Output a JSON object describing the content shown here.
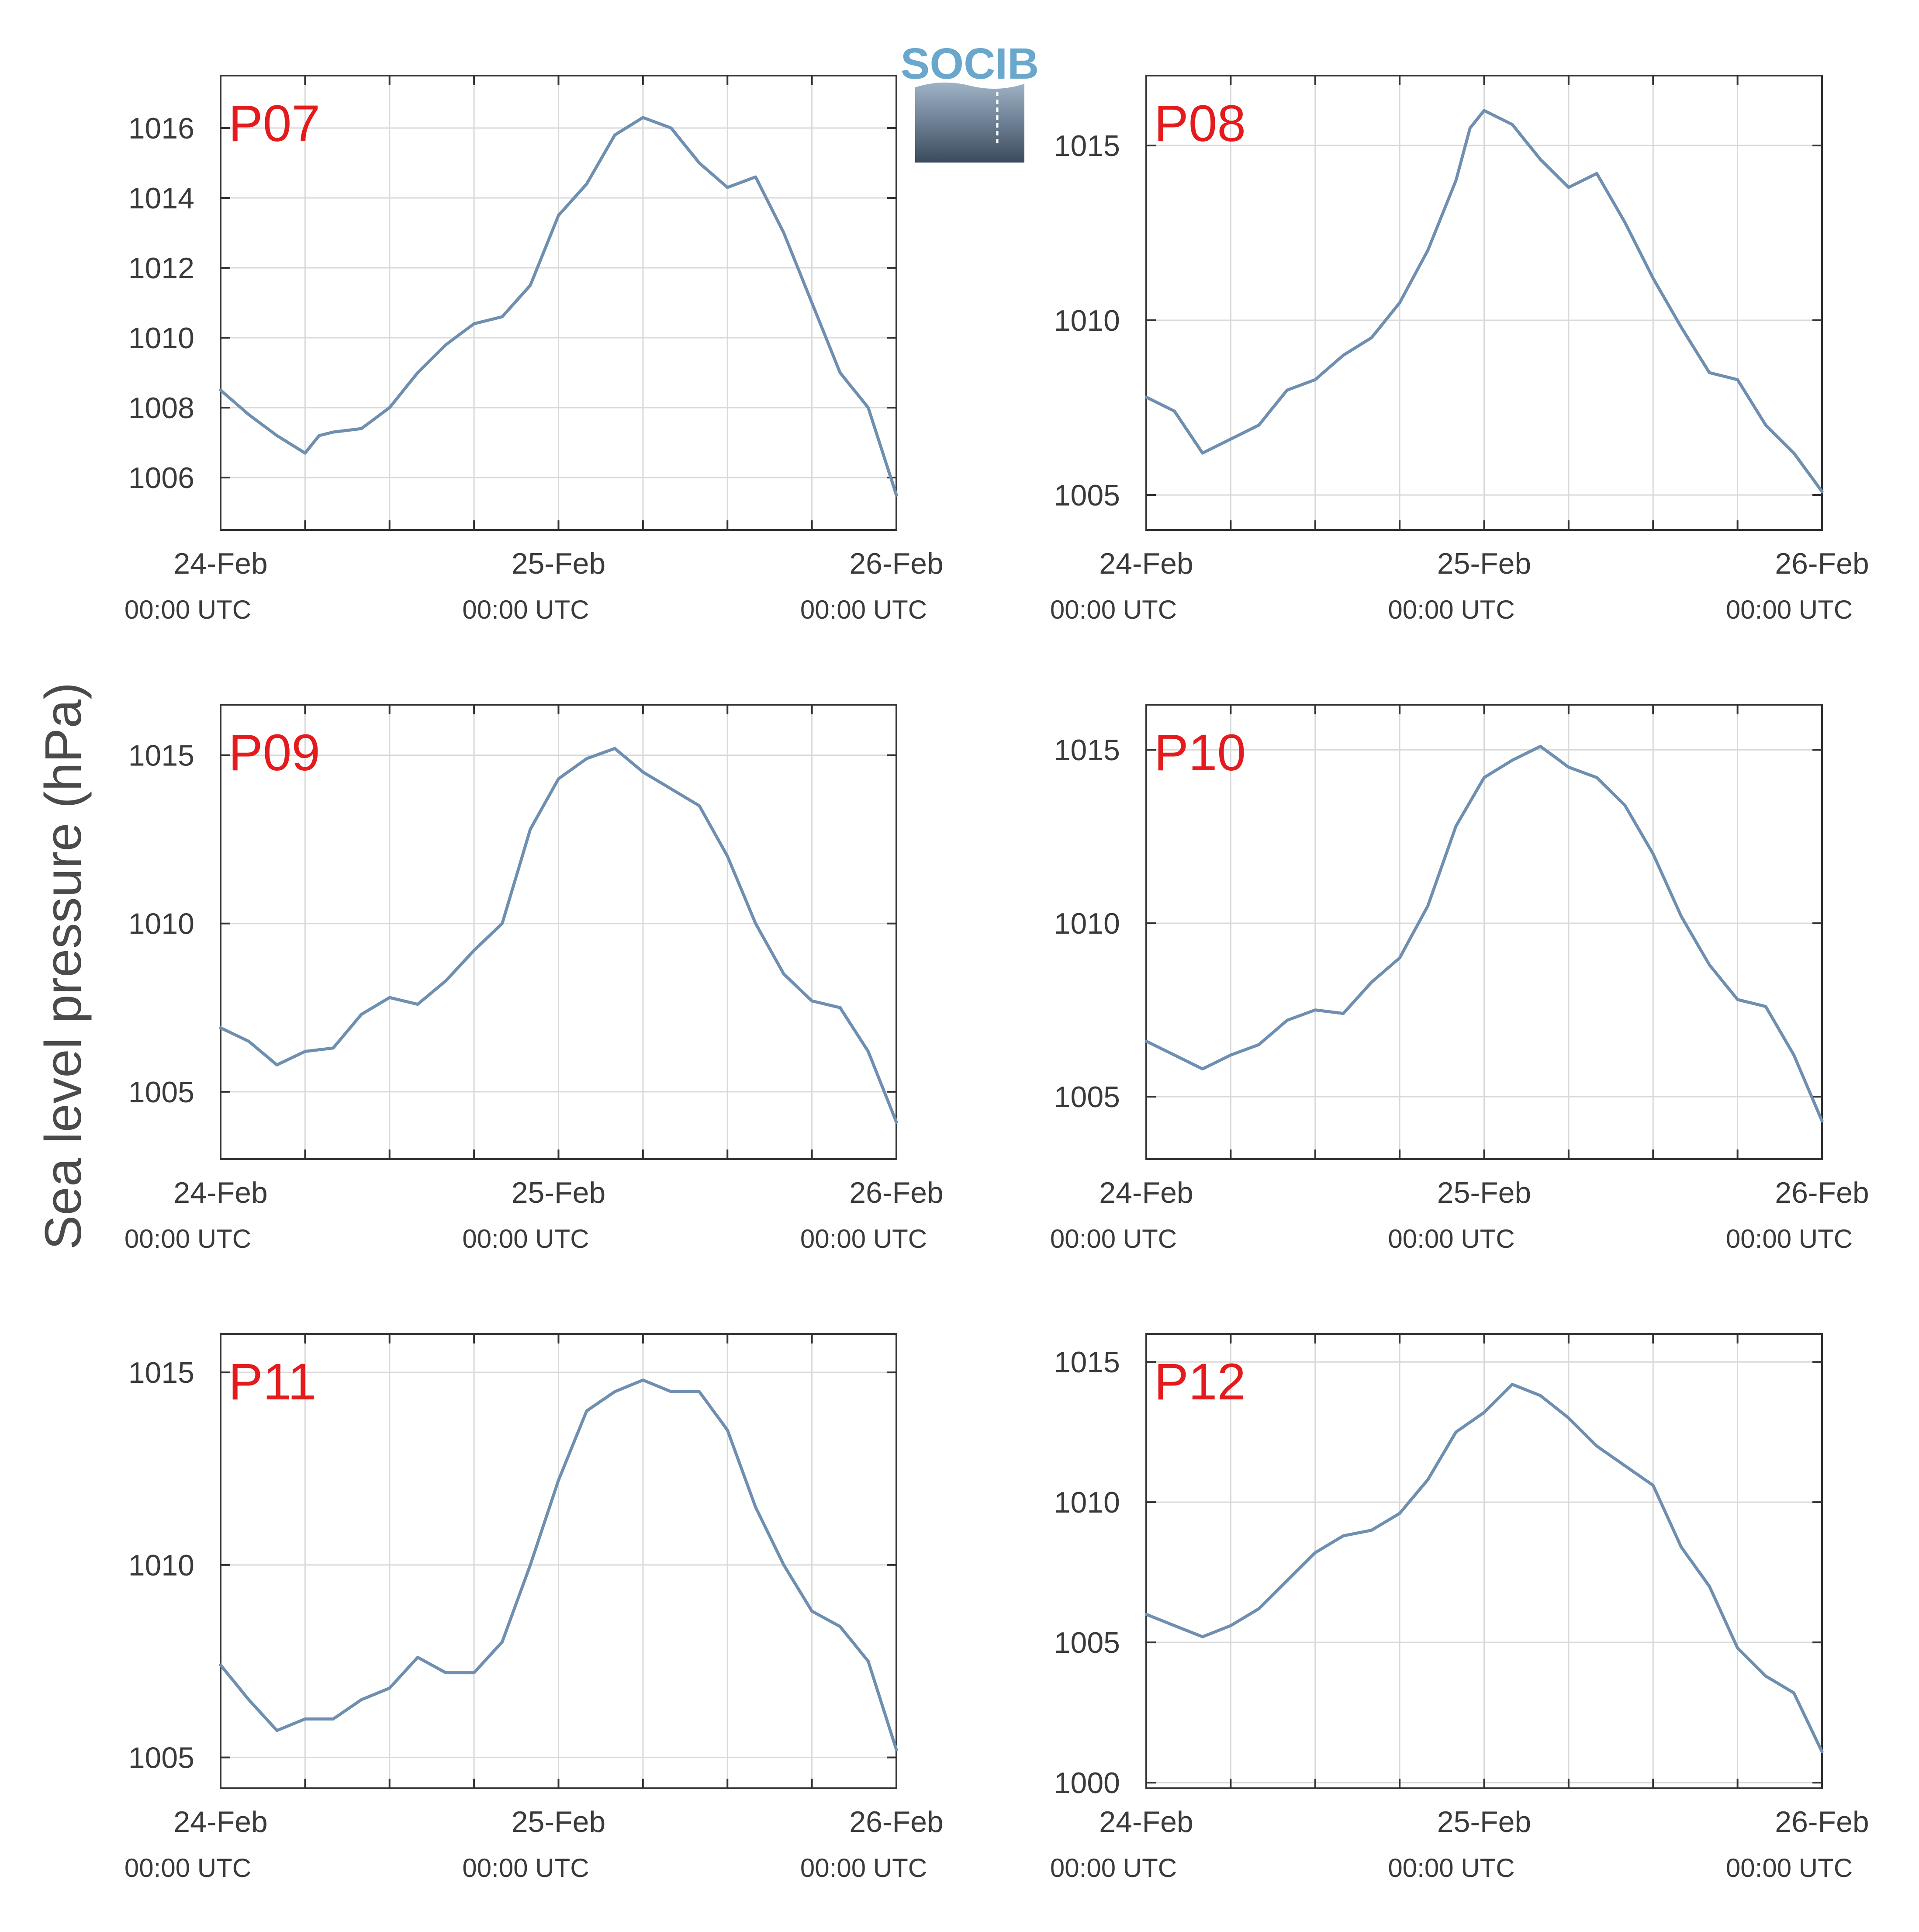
{
  "figure": {
    "ylabel": "Sea level pressure (hPa)",
    "logo_text": "SOCIB",
    "colors": {
      "line": "#6f8fb0",
      "panel_label": "#e41a1c",
      "logo_top": "#6aa7cc",
      "logo_bottom": "#3b4b5e"
    }
  },
  "chart_data": [
    {
      "type": "line",
      "panel": "P07",
      "x_ticks": [
        {
          "main": "24-Feb",
          "sub": "00:00 UTC"
        },
        {
          "main": "25-Feb",
          "sub": "00:00 UTC"
        },
        {
          "main": "26-Feb",
          "sub": "00:00 UTC"
        }
      ],
      "ylim": [
        1004.5,
        1017.5
      ],
      "yticks": [
        1006,
        1008,
        1010,
        1012,
        1014,
        1016
      ],
      "x": [
        0,
        2,
        4,
        6,
        7,
        8,
        10,
        12,
        14,
        16,
        18,
        20,
        22,
        24,
        26,
        28,
        30,
        32,
        34,
        36,
        38,
        40,
        42,
        44,
        46,
        48
      ],
      "values": [
        1008.5,
        1007.8,
        1007.2,
        1006.7,
        1007.2,
        1007.3,
        1007.4,
        1008.0,
        1009.0,
        1009.8,
        1010.4,
        1010.6,
        1011.5,
        1013.5,
        1014.4,
        1015.8,
        1016.3,
        1016.0,
        1015.0,
        1014.3,
        1014.6,
        1013.0,
        1011.0,
        1009.0,
        1008.0,
        1005.5
      ],
      "grid": true
    },
    {
      "type": "line",
      "panel": "P08",
      "x_ticks": [
        {
          "main": "24-Feb",
          "sub": "00:00 UTC"
        },
        {
          "main": "25-Feb",
          "sub": "00:00 UTC"
        },
        {
          "main": "26-Feb",
          "sub": "00:00 UTC"
        }
      ],
      "ylim": [
        1004,
        1017
      ],
      "yticks": [
        1005,
        1010,
        1015
      ],
      "x": [
        0,
        2,
        4,
        6,
        8,
        10,
        12,
        14,
        16,
        18,
        20,
        22,
        23,
        24,
        26,
        28,
        30,
        32,
        34,
        36,
        38,
        40,
        42,
        44,
        46,
        48
      ],
      "values": [
        1007.8,
        1007.4,
        1006.2,
        1006.6,
        1007.0,
        1008.0,
        1008.3,
        1009.0,
        1009.5,
        1010.5,
        1012.0,
        1014.0,
        1015.5,
        1016.0,
        1015.6,
        1014.6,
        1013.8,
        1014.2,
        1012.8,
        1011.2,
        1009.8,
        1008.5,
        1008.3,
        1007.0,
        1006.2,
        1005.1
      ],
      "grid": true
    },
    {
      "type": "line",
      "panel": "P09",
      "x_ticks": [
        {
          "main": "24-Feb",
          "sub": "00:00 UTC"
        },
        {
          "main": "25-Feb",
          "sub": "00:00 UTC"
        },
        {
          "main": "26-Feb",
          "sub": "00:00 UTC"
        }
      ],
      "ylim": [
        1003,
        1016.5
      ],
      "yticks": [
        1005,
        1010,
        1015
      ],
      "x": [
        0,
        2,
        4,
        6,
        8,
        10,
        12,
        14,
        16,
        18,
        20,
        22,
        24,
        26,
        28,
        30,
        32,
        34,
        36,
        38,
        40,
        42,
        44,
        46,
        48
      ],
      "values": [
        1006.9,
        1006.5,
        1005.8,
        1006.2,
        1006.3,
        1007.3,
        1007.8,
        1007.6,
        1008.3,
        1009.2,
        1010.0,
        1012.8,
        1014.3,
        1014.9,
        1015.2,
        1014.5,
        1014.0,
        1013.5,
        1012.0,
        1010.0,
        1008.5,
        1007.7,
        1007.5,
        1006.2,
        1004.1
      ],
      "grid": true
    },
    {
      "type": "line",
      "panel": "P10",
      "x_ticks": [
        {
          "main": "24-Feb",
          "sub": "00:00 UTC"
        },
        {
          "main": "25-Feb",
          "sub": "00:00 UTC"
        },
        {
          "main": "26-Feb",
          "sub": "00:00 UTC"
        }
      ],
      "ylim": [
        1003.2,
        1016.3
      ],
      "yticks": [
        1005,
        1010,
        1015
      ],
      "x": [
        0,
        2,
        4,
        6,
        8,
        10,
        12,
        14,
        16,
        18,
        20,
        22,
        24,
        26,
        28,
        30,
        32,
        34,
        36,
        38,
        40,
        42,
        44,
        46,
        48
      ],
      "values": [
        1006.6,
        1006.2,
        1005.8,
        1006.2,
        1006.5,
        1007.2,
        1007.5,
        1007.4,
        1008.3,
        1009.0,
        1010.5,
        1012.8,
        1014.2,
        1014.7,
        1015.1,
        1014.5,
        1014.2,
        1013.4,
        1012.0,
        1010.2,
        1008.8,
        1007.8,
        1007.6,
        1006.2,
        1004.3
      ],
      "grid": true
    },
    {
      "type": "line",
      "panel": "P11",
      "x_ticks": [
        {
          "main": "24-Feb",
          "sub": "00:00 UTC"
        },
        {
          "main": "25-Feb",
          "sub": "00:00 UTC"
        },
        {
          "main": "26-Feb",
          "sub": "00:00 UTC"
        }
      ],
      "ylim": [
        1004.2,
        1016
      ],
      "yticks": [
        1005,
        1010,
        1015
      ],
      "x": [
        0,
        2,
        4,
        6,
        8,
        10,
        12,
        14,
        16,
        18,
        20,
        22,
        24,
        26,
        28,
        30,
        32,
        34,
        36,
        38,
        40,
        42,
        44,
        46,
        48
      ],
      "values": [
        1007.4,
        1006.5,
        1005.7,
        1006.0,
        1006.0,
        1006.5,
        1006.8,
        1007.6,
        1007.2,
        1007.2,
        1008.0,
        1010.0,
        1012.2,
        1014.0,
        1014.5,
        1014.8,
        1014.5,
        1014.5,
        1013.5,
        1011.5,
        1010.0,
        1008.8,
        1008.4,
        1007.5,
        1005.2
      ],
      "grid": true
    },
    {
      "type": "line",
      "panel": "P12",
      "x_ticks": [
        {
          "main": "24-Feb",
          "sub": "00:00 UTC"
        },
        {
          "main": "25-Feb",
          "sub": "00:00 UTC"
        },
        {
          "main": "26-Feb",
          "sub": "00:00 UTC"
        }
      ],
      "ylim": [
        999.8,
        1016
      ],
      "yticks": [
        1000,
        1005,
        1010,
        1015
      ],
      "x": [
        0,
        2,
        4,
        6,
        8,
        10,
        12,
        14,
        16,
        18,
        20,
        22,
        24,
        26,
        28,
        30,
        32,
        34,
        36,
        38,
        40,
        42,
        44,
        46,
        48
      ],
      "values": [
        1006.0,
        1005.6,
        1005.2,
        1005.6,
        1006.2,
        1007.2,
        1008.2,
        1008.8,
        1009.0,
        1009.6,
        1010.8,
        1012.5,
        1013.2,
        1014.2,
        1013.8,
        1013.0,
        1012.0,
        1011.3,
        1010.6,
        1008.4,
        1007.0,
        1004.8,
        1003.8,
        1003.2,
        1001.1
      ],
      "grid": true
    }
  ]
}
